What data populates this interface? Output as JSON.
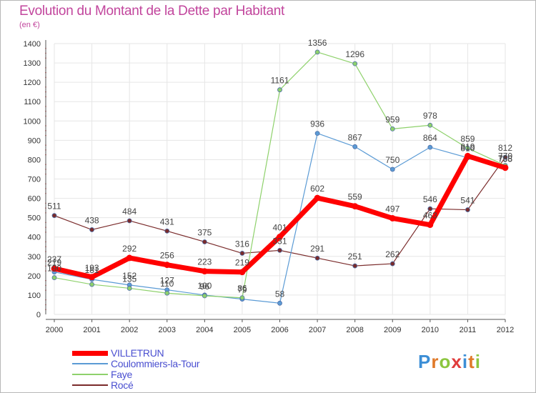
{
  "title": "Evolution du Montant de la Dette par Habitant",
  "subtitle": "(en €)",
  "logo": {
    "letters": [
      "P",
      "r",
      "o",
      "x",
      "i",
      "t",
      "i"
    ],
    "colors": [
      "#3b8ed6",
      "#e07a2a",
      "#8cc63f",
      "#e03c3c",
      "#3b8ed6",
      "#e07a2a",
      "#8cc63f"
    ]
  },
  "chart_data": {
    "type": "line",
    "x": [
      "2000",
      "2001",
      "2002",
      "2003",
      "2004",
      "2005",
      "2006",
      "2007",
      "2008",
      "2009",
      "2010",
      "2011",
      "2012"
    ],
    "ylim": [
      0,
      1400
    ],
    "yticks": [
      0,
      100,
      200,
      300,
      400,
      500,
      600,
      700,
      800,
      900,
      1000,
      1100,
      1200,
      1300,
      1400
    ],
    "grid": true,
    "series": [
      {
        "name": "Rocé",
        "color": "#7a2b2b",
        "width": 1.2,
        "values": [
          511,
          438,
          484,
          431,
          375,
          316,
          331,
          291,
          251,
          262,
          546,
          541,
          812
        ],
        "labels": [
          "511",
          "438",
          "484",
          "431",
          "375",
          "316",
          "331",
          "291",
          "251",
          "262",
          "546",
          "541",
          "812"
        ]
      },
      {
        "name": "Coulommiers-la-Tour",
        "color": "#5b9bd5",
        "width": 1.2,
        "values": [
          219,
          181,
          152,
          127,
          100,
          79,
          58,
          936,
          867,
          750,
          864,
          810,
          755
        ],
        "labels": [
          "219",
          "181",
          "152",
          "127",
          "100",
          "79",
          "58",
          "936",
          "867",
          "750",
          "864",
          "810",
          "755"
        ]
      },
      {
        "name": "Faye",
        "color": "#8ed16b",
        "width": 1.2,
        "values": [
          190,
          155,
          135,
          110,
          96,
          86,
          1161,
          1356,
          1296,
          959,
          978,
          859,
          770
        ],
        "labels": [
          "190",
          "",
          "135",
          "110",
          "96",
          "86",
          "1161",
          "1356",
          "1296",
          "959",
          "978",
          "859",
          "770"
        ]
      },
      {
        "name": "VILLETRUN",
        "color": "#ff0000",
        "width": 7,
        "values": [
          237,
          193,
          292,
          256,
          223,
          219,
          401,
          602,
          559,
          497,
          463,
          819,
          758
        ],
        "labels": [
          "237",
          "193",
          "292",
          "256",
          "223",
          "219",
          "401",
          "602",
          "559",
          "497",
          "463",
          "819",
          "758"
        ]
      }
    ],
    "legend": {
      "position": "bottom-left",
      "entries": [
        {
          "name": "VILLETRUN",
          "color": "#ff0000",
          "thickness": 7
        },
        {
          "name": "Coulommiers-la-Tour",
          "color": "#5b9bd5",
          "thickness": 2
        },
        {
          "name": "Faye",
          "color": "#8ed16b",
          "thickness": 2
        },
        {
          "name": "Rocé",
          "color": "#7a2b2b",
          "thickness": 2
        }
      ]
    }
  }
}
